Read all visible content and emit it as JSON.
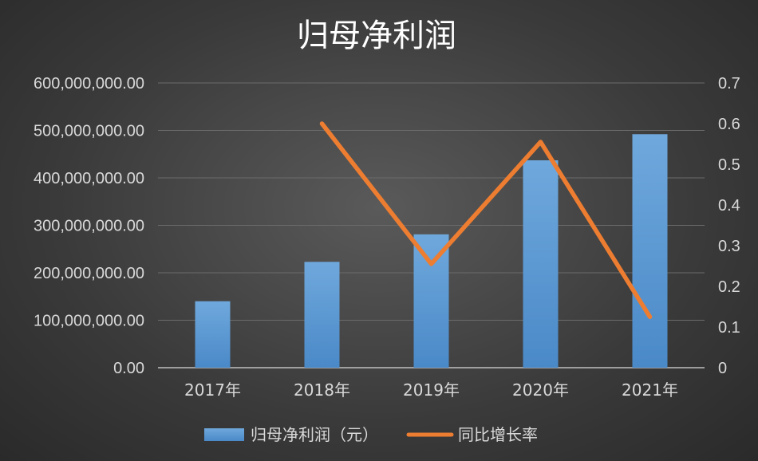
{
  "chart_data": {
    "type": "bar",
    "title": "归母净利润",
    "categories": [
      "2017年",
      "2018年",
      "2019年",
      "2020年",
      "2021年"
    ],
    "series": [
      {
        "name": "归母净利润（元）",
        "type": "bar",
        "axis": "left",
        "values": [
          140000000,
          223000000,
          281000000,
          437000000,
          492000000
        ]
      },
      {
        "name": "同比增长率",
        "type": "line",
        "axis": "right",
        "values": [
          null,
          0.6,
          0.255,
          0.555,
          0.125
        ]
      }
    ],
    "y_left": {
      "ylim": [
        0,
        600000000
      ],
      "ticks": [
        "0.00",
        "100,000,000.00",
        "200,000,000.00",
        "300,000,000.00",
        "400,000,000.00",
        "500,000,000.00",
        "600,000,000.00"
      ]
    },
    "y_right": {
      "ylim": [
        0,
        0.7
      ],
      "ticks": [
        "0",
        "0.1",
        "0.2",
        "0.3",
        "0.4",
        "0.5",
        "0.6",
        "0.7"
      ]
    },
    "grid": true,
    "legend_position": "bottom",
    "colors": {
      "bar": "#5b9bd5",
      "line": "#ed7d31"
    }
  }
}
